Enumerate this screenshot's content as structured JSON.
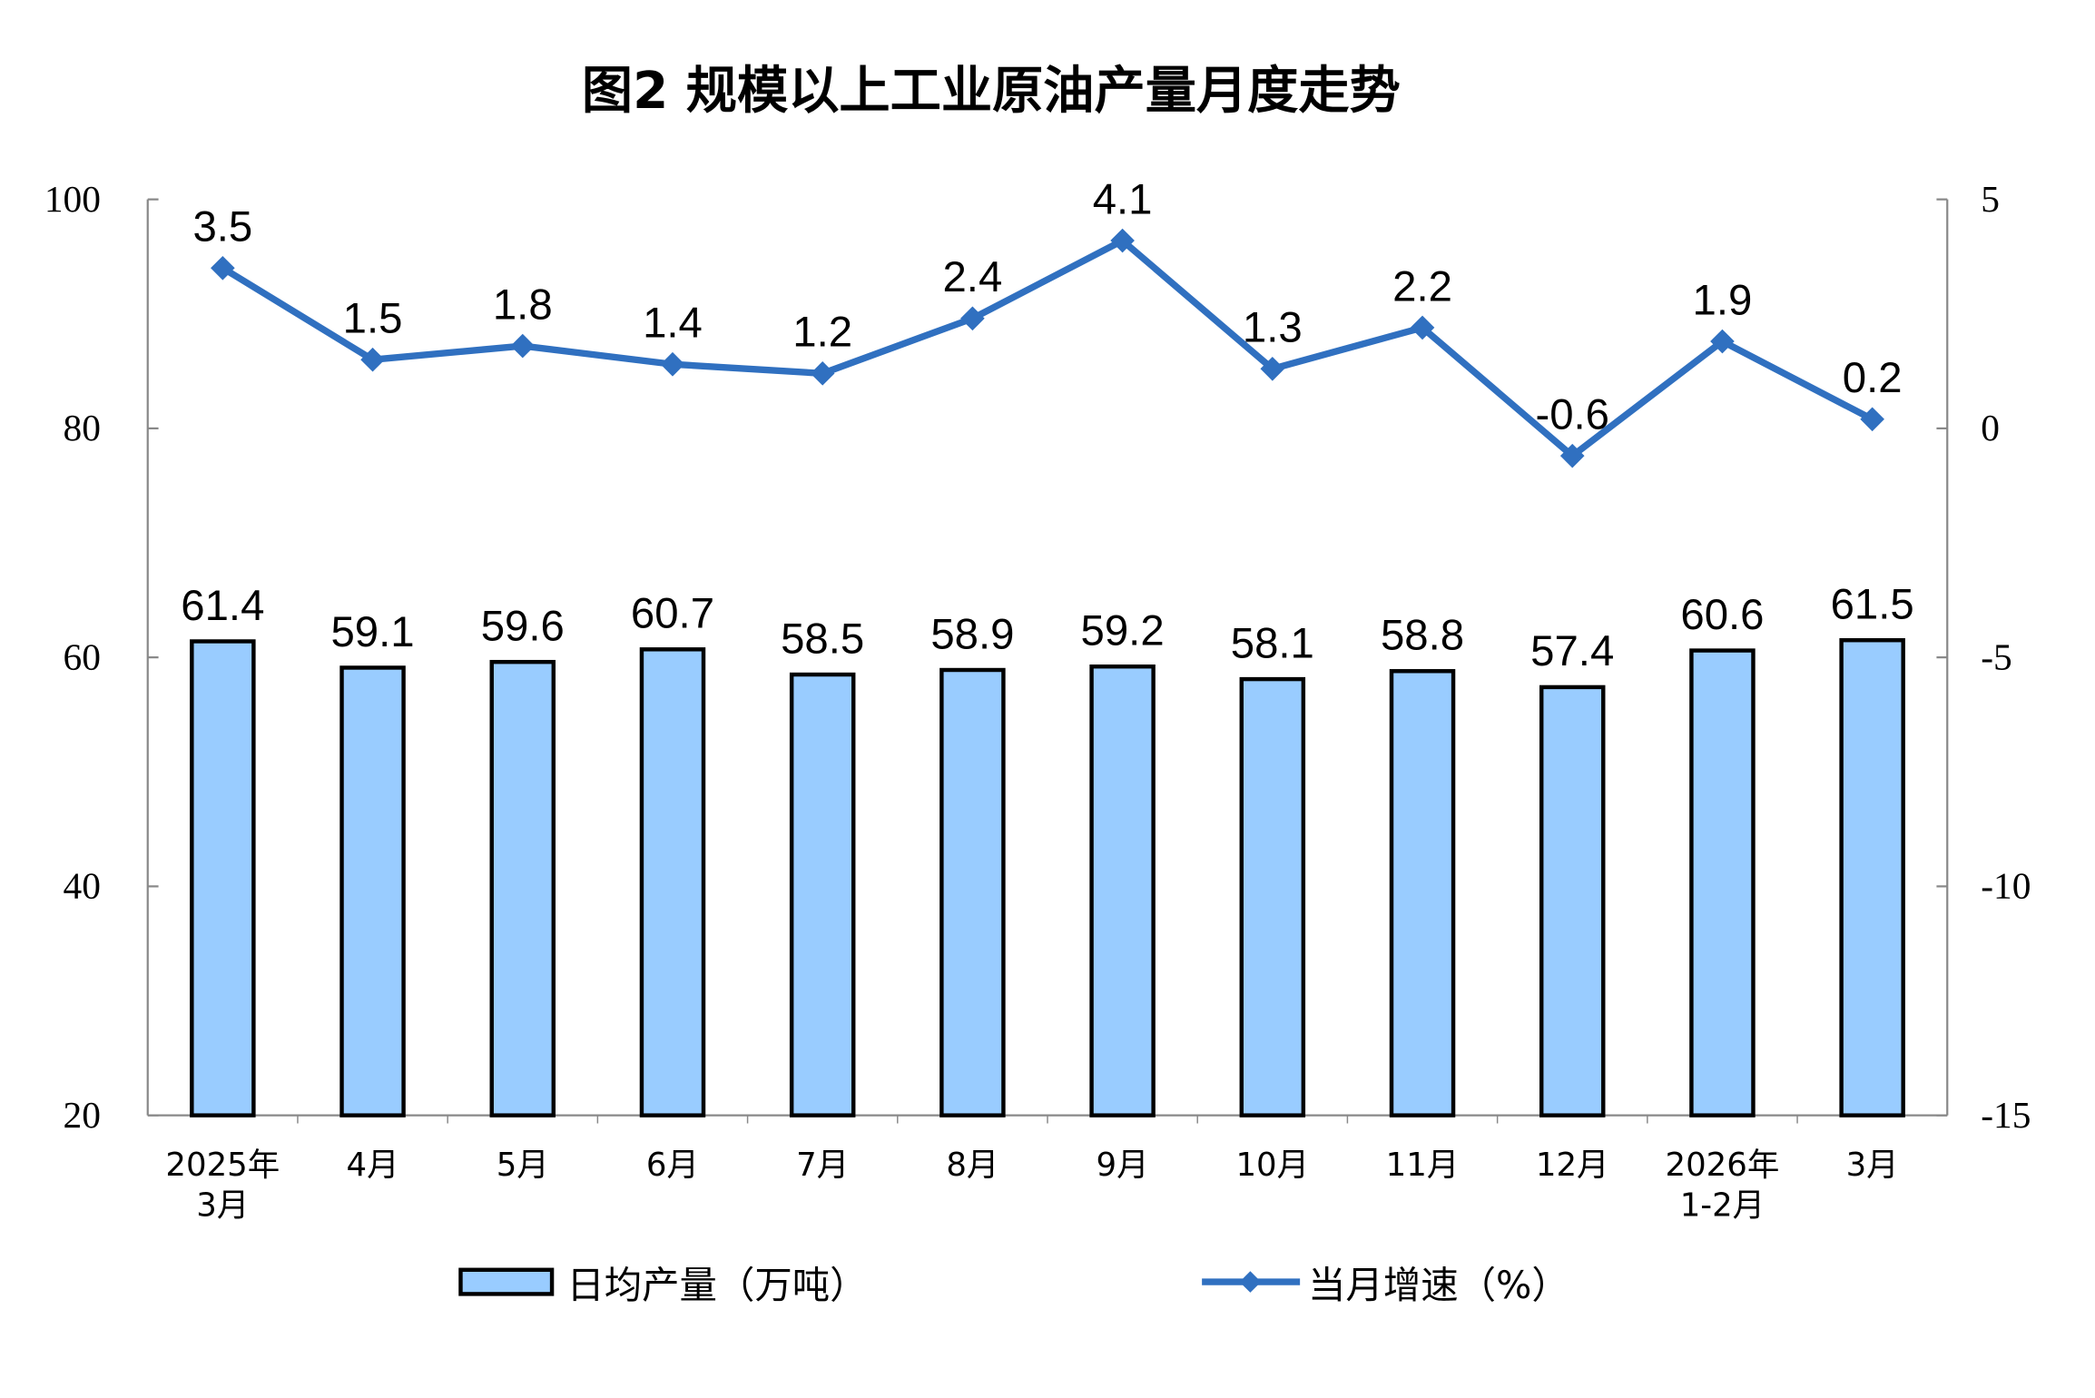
{
  "chart_data": {
    "type": "bar+line",
    "title": "图2  规模以上工业原油产量月度走势",
    "categories": [
      [
        "2025年",
        "3月"
      ],
      [
        "4月"
      ],
      [
        "5月"
      ],
      [
        "6月"
      ],
      [
        "7月"
      ],
      [
        "8月"
      ],
      [
        "9月"
      ],
      [
        "10月"
      ],
      [
        "11月"
      ],
      [
        "12月"
      ],
      [
        "2026年",
        "1-2月"
      ],
      [
        "3月"
      ]
    ],
    "series": [
      {
        "name": "日均产量（万吨）",
        "type": "bar",
        "axis": "left",
        "color": "#99CCFF",
        "values": [
          61.4,
          59.1,
          59.6,
          60.7,
          58.5,
          58.9,
          59.2,
          58.1,
          58.8,
          57.4,
          60.6,
          61.5
        ],
        "labels": [
          "61.4",
          "59.1",
          "59.6",
          "60.7",
          "58.5",
          "58.9",
          "59.2",
          "58.1",
          "58.8",
          "57.4",
          "60.6",
          "61.5"
        ]
      },
      {
        "name": "当月增速（%）",
        "type": "line",
        "axis": "right",
        "color": "#3070C0",
        "values": [
          3.5,
          1.5,
          1.8,
          1.4,
          1.2,
          2.4,
          4.1,
          1.3,
          2.2,
          -0.6,
          1.9,
          0.2
        ],
        "labels": [
          "3.5",
          "1.5",
          "1.8",
          "1.4",
          "1.2",
          "2.4",
          "4.1",
          "1.3",
          "2.2",
          "-0.6",
          "1.9",
          "0.2"
        ]
      }
    ],
    "left_axis": {
      "ylim": [
        20,
        100
      ],
      "ticks": [
        "100",
        "80",
        "60",
        "40",
        "20"
      ]
    },
    "right_axis": {
      "ylim": [
        -15,
        5
      ],
      "ticks": [
        "5",
        "0",
        "-5",
        "-10",
        "-15"
      ]
    },
    "grid": false,
    "legend": "bottom"
  }
}
